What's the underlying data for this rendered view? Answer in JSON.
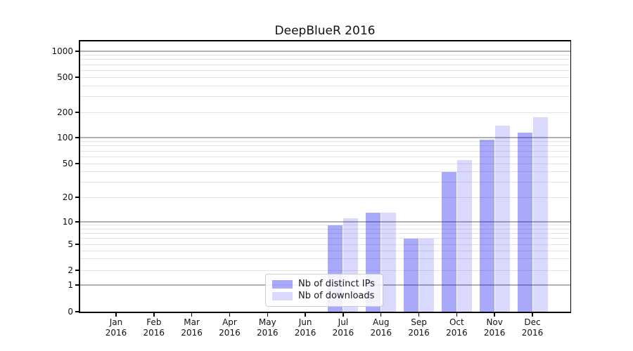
{
  "chart_data": {
    "type": "bar",
    "title": "DeepBlueR 2016",
    "x": {
      "months": [
        "Jan",
        "Feb",
        "Mar",
        "Apr",
        "May",
        "Jun",
        "Jul",
        "Aug",
        "Sep",
        "Oct",
        "Nov",
        "Dec"
      ],
      "year": "2016"
    },
    "series": [
      {
        "name": "Nb of distinct IPs",
        "color": "rgba(16,16,245,0.36)",
        "values": [
          0,
          0,
          0,
          0,
          0,
          0,
          9,
          13,
          6,
          40,
          95,
          115
        ]
      },
      {
        "name": "Nb of downloads",
        "color": "rgba(16,16,245,0.16)",
        "values": [
          0,
          0,
          0,
          0,
          0,
          0,
          11,
          13,
          6,
          55,
          140,
          175
        ]
      }
    ],
    "y_axis": {
      "scale": "pseudo-log",
      "ticks": [
        0,
        1,
        2,
        5,
        10,
        20,
        50,
        100,
        200,
        500,
        1000
      ],
      "range": [
        0,
        1400
      ]
    },
    "gridlines": {
      "orientation": "horizontal",
      "major": [
        1,
        10,
        100,
        1000
      ],
      "labeled_minor": [
        2,
        5,
        20,
        50,
        200,
        500
      ],
      "minor": [
        3,
        4,
        6,
        7,
        8,
        9,
        30,
        40,
        60,
        70,
        80,
        90,
        300,
        400,
        600,
        700,
        800,
        900
      ]
    },
    "legend": {
      "position": "lower center"
    },
    "colors": {
      "bar_distinct_ips": "rgba(16,16,245,0.36)",
      "bar_downloads": "rgba(16,16,245,0.16)",
      "grid_major": "#b0b0b0",
      "grid_minor": "#e4e4e4",
      "axis": "#000000"
    }
  }
}
